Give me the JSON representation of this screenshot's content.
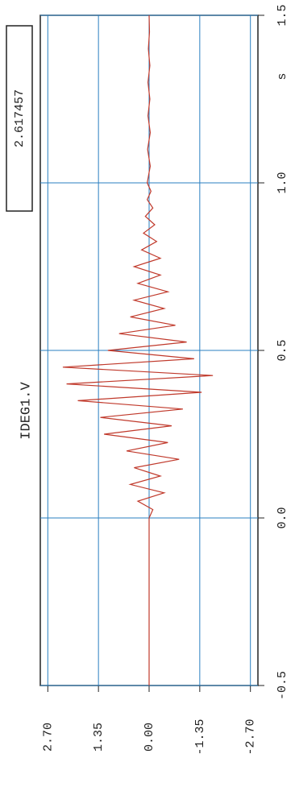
{
  "chart_data": {
    "type": "line",
    "title": "IDEG1.V",
    "annotation": "2.617457",
    "x_label": "s",
    "x": [
      -0.5,
      0,
      0.025,
      0.05,
      0.075,
      0.1,
      0.125,
      0.15,
      0.175,
      0.2,
      0.225,
      0.25,
      0.275,
      0.3,
      0.325,
      0.35,
      0.375,
      0.4,
      0.425,
      0.45,
      0.475,
      0.5,
      0.525,
      0.55,
      0.575,
      0.6,
      0.625,
      0.65,
      0.675,
      0.7,
      0.725,
      0.75,
      0.775,
      0.8,
      0.825,
      0.85,
      0.875,
      0.9,
      0.925,
      0.95,
      0.975,
      1.0,
      1.05,
      1.1,
      1.15,
      1.2,
      1.25,
      1.3,
      1.35,
      1.4,
      1.45,
      1.5
    ],
    "values": [
      0,
      0,
      -0.1,
      0.3,
      -0.4,
      0.5,
      -0.3,
      0.4,
      -0.8,
      0.6,
      -0.5,
      1.2,
      -0.6,
      1.3,
      -0.9,
      1.9,
      -1.4,
      2.2,
      -1.7,
      2.3,
      -1.2,
      1.1,
      -1.0,
      0.8,
      -0.7,
      0.5,
      -0.4,
      0.4,
      -0.5,
      0.3,
      -0.3,
      0.4,
      -0.3,
      0.2,
      -0.2,
      0.15,
      -0.15,
      0.1,
      -0.1,
      0.05,
      -0.05,
      0.05,
      -0.03,
      0.04,
      -0.03,
      0.03,
      -0.02,
      0.03,
      -0.02,
      0.02,
      -0.01,
      0
    ],
    "color": "#c0392b",
    "xlim": [
      -0.5,
      1.5
    ],
    "xticks": [
      {
        "value": -0.5,
        "label": "-0.5"
      },
      {
        "value": 0,
        "label": "0.0"
      },
      0.5,
      {
        "value": 1,
        "label": "1.0"
      },
      1.5
    ],
    "ylim": [
      2.9,
      -2.9
    ],
    "yticks": [
      {
        "value": 2.7,
        "label": "2.70"
      },
      1.35,
      {
        "value": 0,
        "label": "0.00"
      },
      -1.35,
      {
        "value": -2.7,
        "label": "-2.70"
      }
    ],
    "grid": true,
    "grid_color": "#2a7fc0"
  }
}
